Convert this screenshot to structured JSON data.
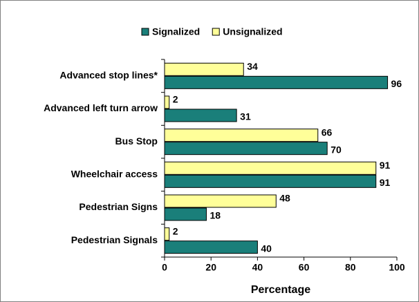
{
  "chart_data": {
    "type": "barh",
    "categories": [
      "Advanced stop lines*",
      "Advanced left turn arrow",
      "Bus Stop",
      "Wheelchair access",
      "Pedestrian Signs",
      "Pedestrian Signals"
    ],
    "series": [
      {
        "name": "Signalized",
        "color": "#1a7f7a",
        "values": [
          96,
          31,
          70,
          91,
          18,
          40
        ]
      },
      {
        "name": "Unsignalized",
        "color": "#ffff99",
        "values": [
          34,
          2,
          66,
          91,
          48,
          2
        ]
      }
    ],
    "x_label": "Percentage",
    "xlim": [
      0,
      100
    ],
    "xticks": [
      0,
      20,
      40,
      60,
      80,
      100
    ],
    "legend": "top"
  }
}
